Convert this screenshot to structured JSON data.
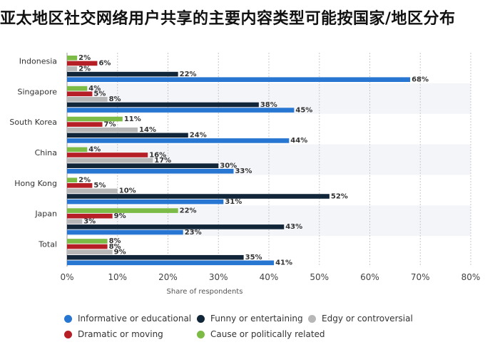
{
  "title": "亚太地区社交网络用户共享的主要内容类型可能按国家/地区分布",
  "chart_data": {
    "type": "bar",
    "orientation": "horizontal",
    "title": "亚太地区社交网络用户共享的主要内容类型可能按国家/地区分布",
    "xlabel": "Share of respondents",
    "ylabel": "",
    "xlim": [
      0,
      80
    ],
    "x_ticks": [
      "0%",
      "10%",
      "20%",
      "30%",
      "40%",
      "50%",
      "60%",
      "70%",
      "80%"
    ],
    "grid": true,
    "legend_position": "bottom",
    "categories": [
      "Indonesia",
      "Singapore",
      "South Korea",
      "China",
      "Hong Kong",
      "Japan",
      "Total"
    ],
    "series": [
      {
        "name": "Cause or politically related",
        "color": "#7cbb45",
        "values": [
          2,
          4,
          11,
          4,
          2,
          22,
          8
        ]
      },
      {
        "name": "Dramatic or moving",
        "color": "#b51f25",
        "values": [
          6,
          5,
          7,
          16,
          5,
          9,
          8
        ]
      },
      {
        "name": "Edgy or controversial",
        "color": "#b7b7b7",
        "values": [
          2,
          8,
          14,
          17,
          10,
          3,
          9
        ]
      },
      {
        "name": "Funny or entertaining",
        "color": "#12263a",
        "values": [
          22,
          38,
          24,
          30,
          52,
          43,
          35
        ]
      },
      {
        "name": "Informative or educational",
        "color": "#2776d2",
        "values": [
          68,
          45,
          44,
          33,
          31,
          23,
          41
        ]
      }
    ]
  },
  "legend": {
    "items": [
      {
        "label": "Informative or educational",
        "color": "#2776d2"
      },
      {
        "label": "Funny or entertaining",
        "color": "#12263a"
      },
      {
        "label": "Edgy or controversial",
        "color": "#b7b7b7"
      },
      {
        "label": "Dramatic or moving",
        "color": "#b51f25"
      },
      {
        "label": "Cause or politically related",
        "color": "#7cbb45"
      }
    ]
  }
}
